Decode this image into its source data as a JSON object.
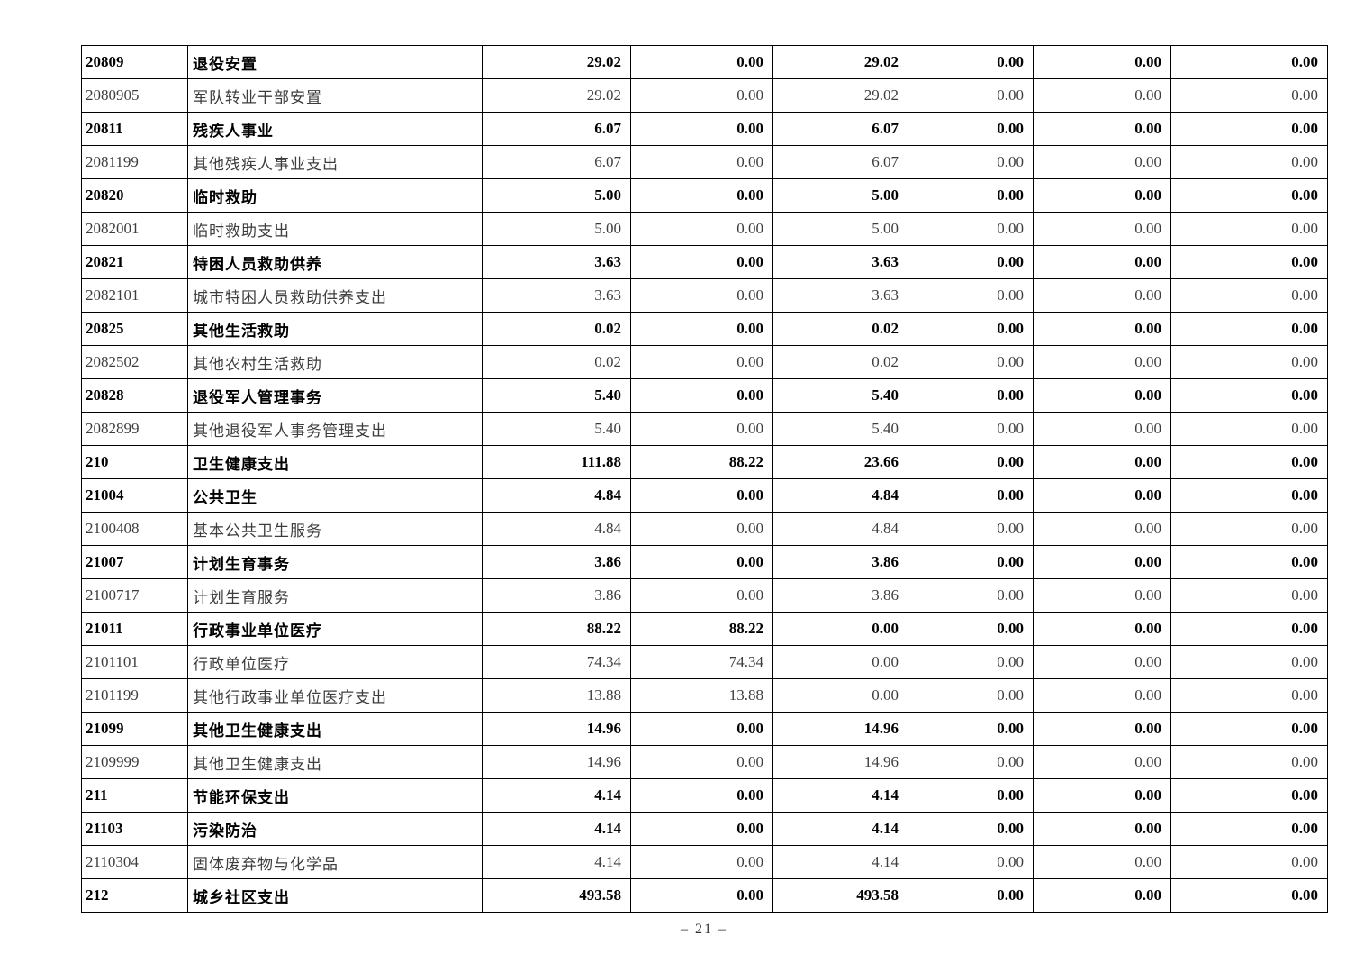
{
  "page": {
    "footer": "– 21 –"
  },
  "table": {
    "rows": [
      {
        "code": "20809",
        "name": "退役安置",
        "bold": true,
        "values": [
          "29.02",
          "0.00",
          "29.02",
          "0.00",
          "0.00",
          "0.00"
        ]
      },
      {
        "code": "2080905",
        "name": "军队转业干部安置",
        "bold": false,
        "values": [
          "29.02",
          "0.00",
          "29.02",
          "0.00",
          "0.00",
          "0.00"
        ]
      },
      {
        "code": "20811",
        "name": "残疾人事业",
        "bold": true,
        "values": [
          "6.07",
          "0.00",
          "6.07",
          "0.00",
          "0.00",
          "0.00"
        ]
      },
      {
        "code": "2081199",
        "name": "其他残疾人事业支出",
        "bold": false,
        "values": [
          "6.07",
          "0.00",
          "6.07",
          "0.00",
          "0.00",
          "0.00"
        ]
      },
      {
        "code": "20820",
        "name": "临时救助",
        "bold": true,
        "values": [
          "5.00",
          "0.00",
          "5.00",
          "0.00",
          "0.00",
          "0.00"
        ]
      },
      {
        "code": "2082001",
        "name": "临时救助支出",
        "bold": false,
        "values": [
          "5.00",
          "0.00",
          "5.00",
          "0.00",
          "0.00",
          "0.00"
        ]
      },
      {
        "code": "20821",
        "name": "特困人员救助供养",
        "bold": true,
        "values": [
          "3.63",
          "0.00",
          "3.63",
          "0.00",
          "0.00",
          "0.00"
        ]
      },
      {
        "code": "2082101",
        "name": "城市特困人员救助供养支出",
        "bold": false,
        "values": [
          "3.63",
          "0.00",
          "3.63",
          "0.00",
          "0.00",
          "0.00"
        ]
      },
      {
        "code": "20825",
        "name": "其他生活救助",
        "bold": true,
        "values": [
          "0.02",
          "0.00",
          "0.02",
          "0.00",
          "0.00",
          "0.00"
        ]
      },
      {
        "code": "2082502",
        "name": "其他农村生活救助",
        "bold": false,
        "values": [
          "0.02",
          "0.00",
          "0.02",
          "0.00",
          "0.00",
          "0.00"
        ]
      },
      {
        "code": "20828",
        "name": "退役军人管理事务",
        "bold": true,
        "values": [
          "5.40",
          "0.00",
          "5.40",
          "0.00",
          "0.00",
          "0.00"
        ]
      },
      {
        "code": "2082899",
        "name": "其他退役军人事务管理支出",
        "bold": false,
        "values": [
          "5.40",
          "0.00",
          "5.40",
          "0.00",
          "0.00",
          "0.00"
        ]
      },
      {
        "code": "210",
        "name": "卫生健康支出",
        "bold": true,
        "values": [
          "111.88",
          "88.22",
          "23.66",
          "0.00",
          "0.00",
          "0.00"
        ]
      },
      {
        "code": "21004",
        "name": "公共卫生",
        "bold": true,
        "values": [
          "4.84",
          "0.00",
          "4.84",
          "0.00",
          "0.00",
          "0.00"
        ]
      },
      {
        "code": "2100408",
        "name": "基本公共卫生服务",
        "bold": false,
        "values": [
          "4.84",
          "0.00",
          "4.84",
          "0.00",
          "0.00",
          "0.00"
        ]
      },
      {
        "code": "21007",
        "name": "计划生育事务",
        "bold": true,
        "values": [
          "3.86",
          "0.00",
          "3.86",
          "0.00",
          "0.00",
          "0.00"
        ]
      },
      {
        "code": "2100717",
        "name": "计划生育服务",
        "bold": false,
        "values": [
          "3.86",
          "0.00",
          "3.86",
          "0.00",
          "0.00",
          "0.00"
        ]
      },
      {
        "code": "21011",
        "name": "行政事业单位医疗",
        "bold": true,
        "values": [
          "88.22",
          "88.22",
          "0.00",
          "0.00",
          "0.00",
          "0.00"
        ]
      },
      {
        "code": "2101101",
        "name": "行政单位医疗",
        "bold": false,
        "values": [
          "74.34",
          "74.34",
          "0.00",
          "0.00",
          "0.00",
          "0.00"
        ]
      },
      {
        "code": "2101199",
        "name": "其他行政事业单位医疗支出",
        "bold": false,
        "values": [
          "13.88",
          "13.88",
          "0.00",
          "0.00",
          "0.00",
          "0.00"
        ]
      },
      {
        "code": "21099",
        "name": "其他卫生健康支出",
        "bold": true,
        "values": [
          "14.96",
          "0.00",
          "14.96",
          "0.00",
          "0.00",
          "0.00"
        ]
      },
      {
        "code": "2109999",
        "name": "其他卫生健康支出",
        "bold": false,
        "values": [
          "14.96",
          "0.00",
          "14.96",
          "0.00",
          "0.00",
          "0.00"
        ]
      },
      {
        "code": "211",
        "name": "节能环保支出",
        "bold": true,
        "values": [
          "4.14",
          "0.00",
          "4.14",
          "0.00",
          "0.00",
          "0.00"
        ]
      },
      {
        "code": "21103",
        "name": "污染防治",
        "bold": true,
        "values": [
          "4.14",
          "0.00",
          "4.14",
          "0.00",
          "0.00",
          "0.00"
        ]
      },
      {
        "code": "2110304",
        "name": "固体废弃物与化学品",
        "bold": false,
        "values": [
          "4.14",
          "0.00",
          "4.14",
          "0.00",
          "0.00",
          "0.00"
        ]
      },
      {
        "code": "212",
        "name": "城乡社区支出",
        "bold": true,
        "values": [
          "493.58",
          "0.00",
          "493.58",
          "0.00",
          "0.00",
          "0.00"
        ]
      }
    ]
  }
}
